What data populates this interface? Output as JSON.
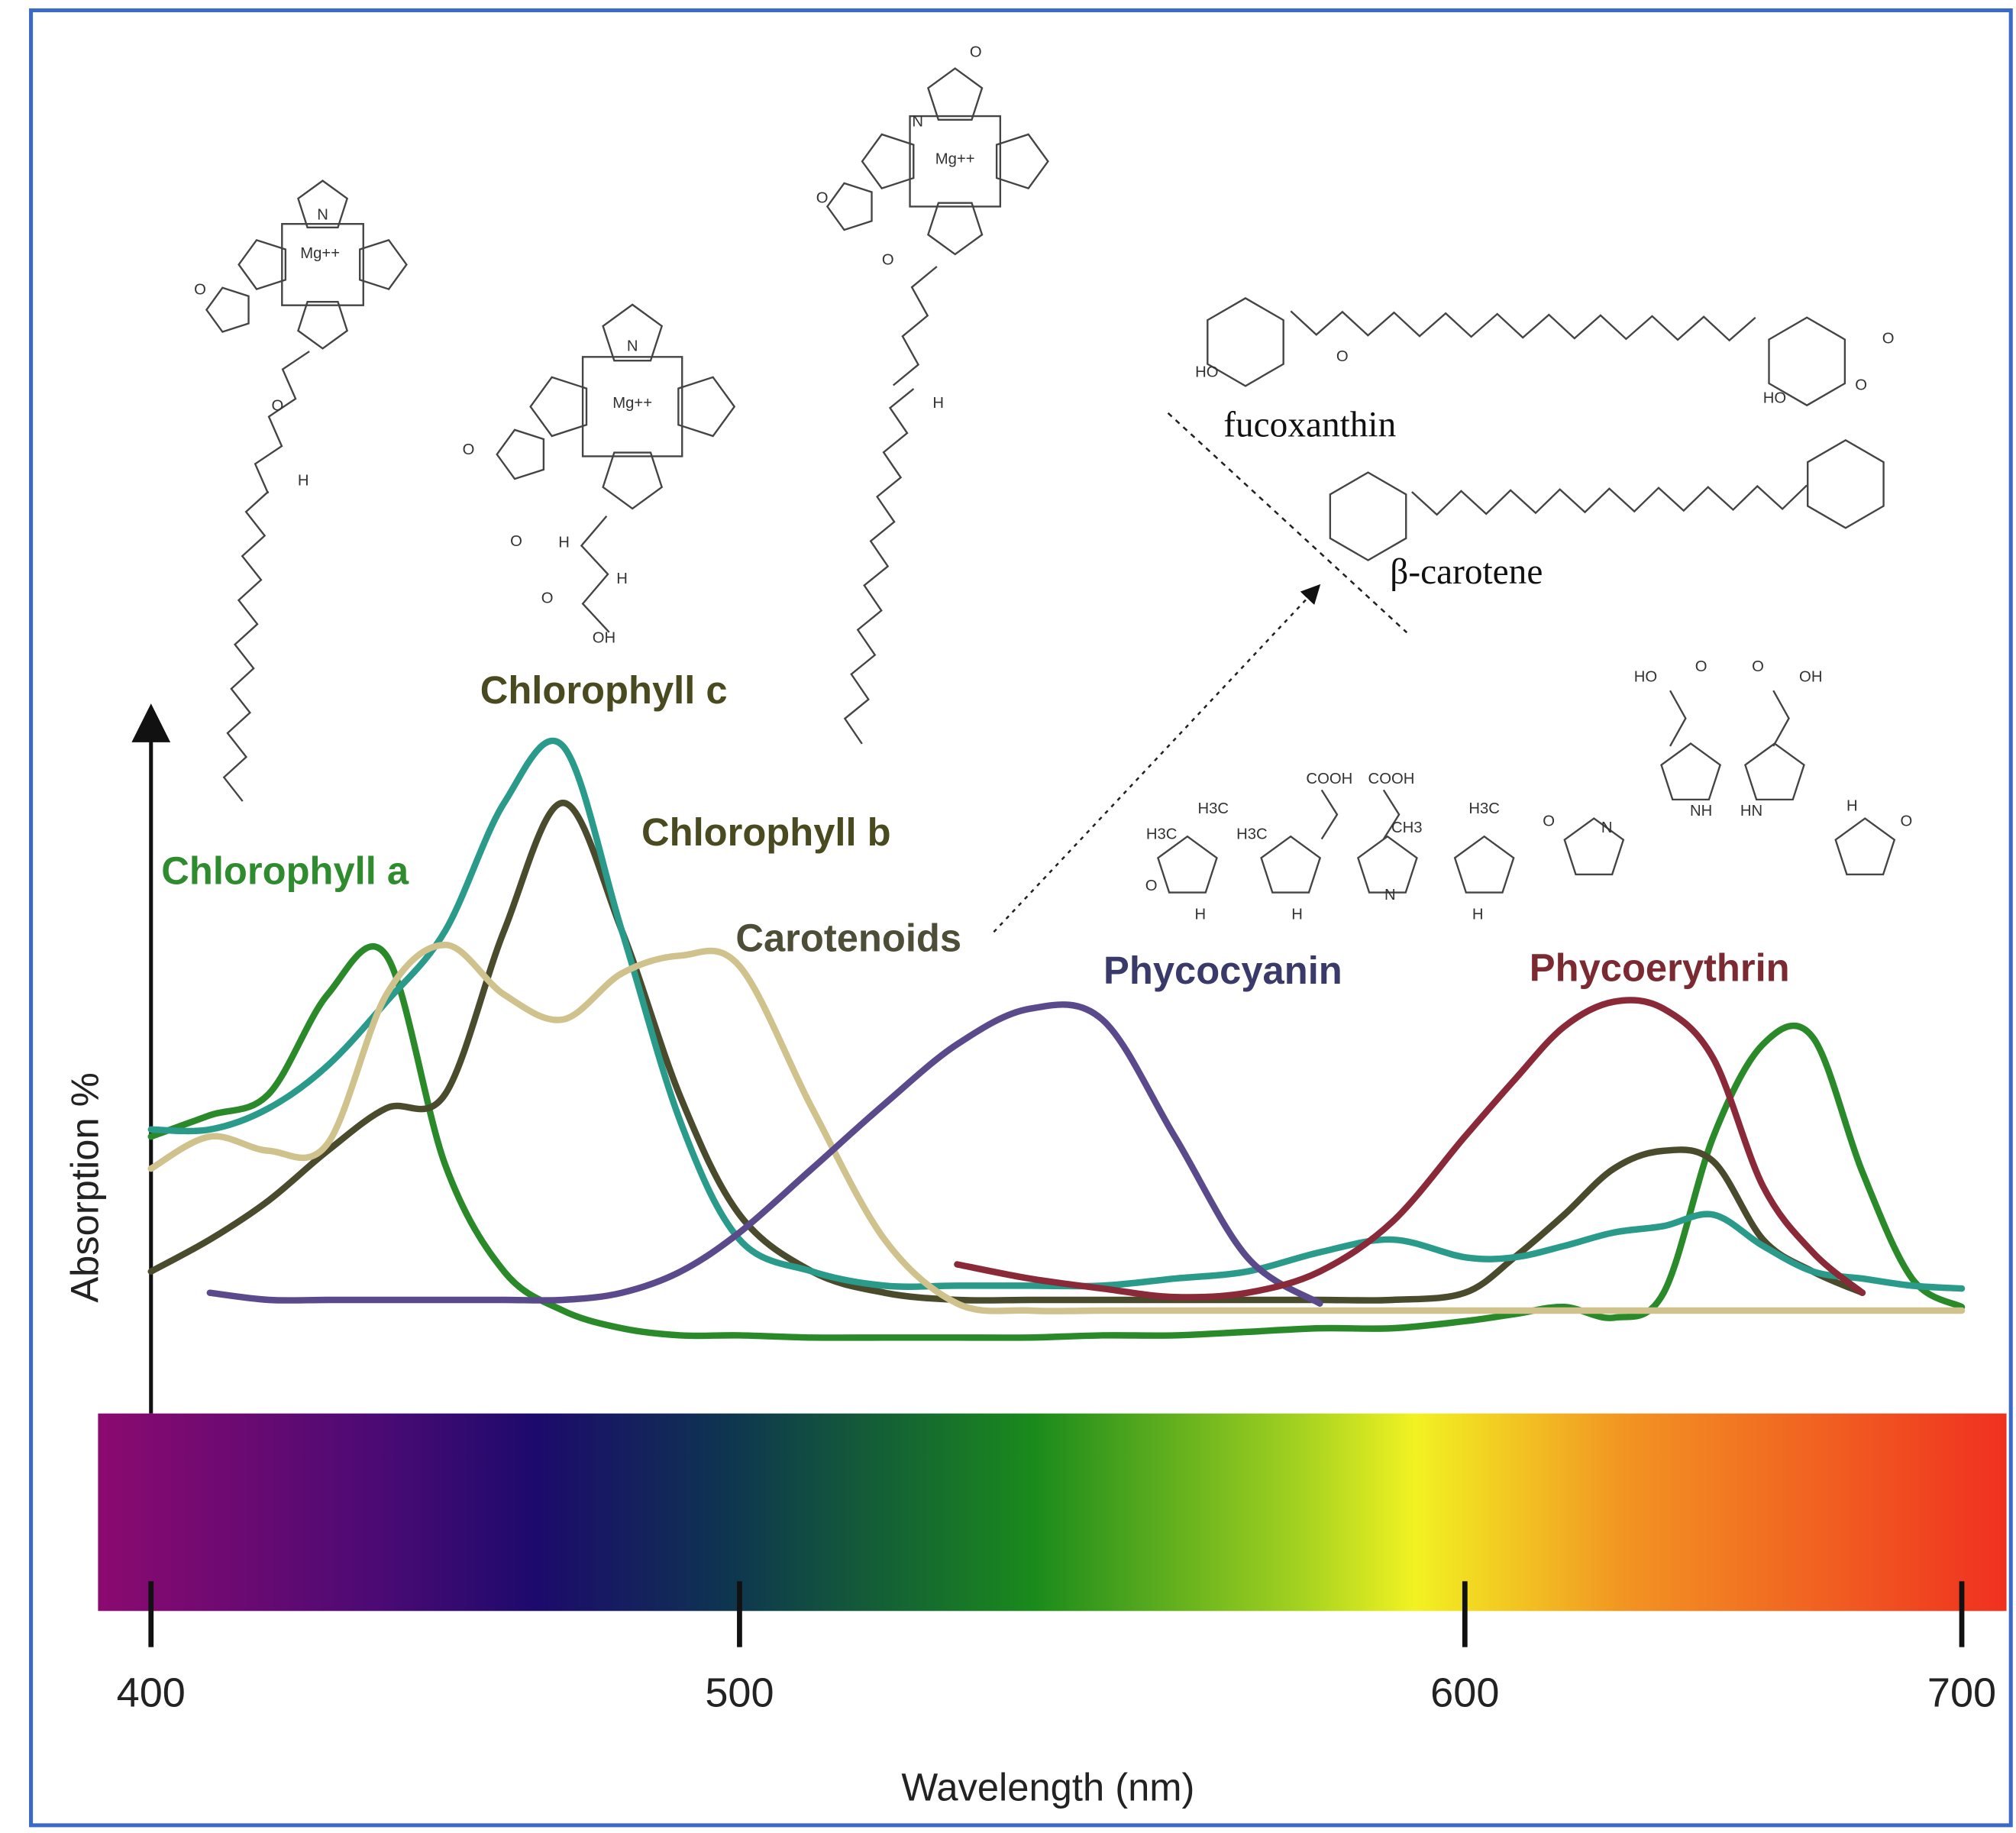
{
  "chart_data": {
    "type": "line",
    "x_label": "Wavelength (nm)",
    "y_label": "Absorption %",
    "x": [
      400,
      410,
      420,
      430,
      440,
      450,
      460,
      470,
      480,
      490,
      500,
      510,
      520,
      530,
      540,
      550,
      560,
      570,
      580,
      590,
      600,
      610,
      620,
      630,
      640,
      650,
      660,
      670,
      680,
      690,
      700
    ],
    "xlim": [
      391,
      709
    ],
    "xticks": [
      400,
      500,
      600,
      700
    ],
    "ylim": [
      0,
      100
    ],
    "grid": false,
    "series": [
      {
        "name": "Chlorophyll a",
        "color": "#2a8a2a",
        "label_color": "#2e8b2e",
        "values": [
          39,
          42,
          45,
          59,
          64.5,
          35,
          20,
          14.5,
          12,
          11,
          11,
          10.7,
          10.7,
          10.7,
          10.7,
          11,
          11,
          11.5,
          12,
          12,
          13,
          14,
          15,
          13.5,
          17,
          39,
          52,
          53,
          34,
          19,
          15
        ]
      },
      {
        "name": "Chlorophyll b",
        "color": "#4a4a2c",
        "label_color": "#4a4a20",
        "values": [
          20,
          24.5,
          30,
          37,
          43,
          45,
          68,
          86,
          68,
          44.5,
          28,
          20,
          17,
          16,
          16,
          16,
          16,
          16,
          16,
          16,
          17,
          22,
          28,
          34.5,
          37,
          35.5,
          24.5,
          20,
          17,
          null,
          null
        ]
      },
      {
        "name": "Chlorophyll c",
        "color": "#2a9a8a",
        "label_color": "#4a4a20",
        "values": [
          40,
          40,
          43,
          49,
          58,
          68,
          86,
          94,
          68,
          41,
          24.5,
          20,
          18,
          18,
          18,
          18,
          19,
          20,
          22.7,
          24.5,
          22,
          22,
          23.6,
          25.5,
          26.4,
          28,
          23.6,
          20,
          19,
          18,
          17.6
        ]
      },
      {
        "name": "Carotenoids",
        "color": "#cfc28c",
        "label_color": "#4d4d38",
        "values": [
          34.5,
          39,
          37,
          38,
          59,
          66,
          59,
          55.5,
          62,
          64.5,
          63,
          43,
          24.5,
          15.5,
          14.5,
          14.5,
          14.5,
          14.5,
          14.5,
          14.5,
          14.5,
          14.5,
          14.5,
          14.5,
          14.5,
          14.5,
          14.5,
          14.5,
          14.5,
          14.5,
          14.5
        ]
      },
      {
        "name": "Phycocyanin",
        "color": "#5a4a8c",
        "label_color": "#3a3a6a",
        "values": [
          null,
          17,
          16,
          16,
          16,
          16,
          16,
          16,
          17,
          20,
          25.5,
          34.5,
          43.6,
          52,
          57,
          55.5,
          39,
          22,
          15.5,
          null,
          null,
          null,
          null,
          null,
          null,
          null,
          null,
          null,
          null,
          null,
          null
        ]
      },
      {
        "name": "Phycoerythrin",
        "color": "#8a2a38",
        "label_color": "#7a2a30",
        "values": [
          null,
          null,
          null,
          null,
          null,
          null,
          null,
          null,
          null,
          null,
          null,
          null,
          null,
          21,
          19,
          17.6,
          16.4,
          17,
          20,
          27,
          39,
          47,
          54.5,
          58,
          57,
          50,
          32,
          22.7,
          17,
          null,
          null
        ]
      }
    ],
    "structure_names": [
      "fucoxanthin",
      "β-carotene"
    ],
    "structure_labels": [
      "N",
      "Mg++",
      "O",
      "O",
      "H",
      "N",
      "Mg++",
      "O",
      "O",
      "H",
      "H",
      "OH",
      "O",
      "N",
      "Mg++",
      "O",
      "O",
      "O",
      "H",
      "HO",
      "O",
      "HO",
      "O",
      "O",
      "COOH",
      "COOH",
      "H3C",
      "H3C",
      "H3C",
      "CH3",
      "H3C",
      "O",
      "H",
      "H",
      "N",
      "H",
      "HO",
      "O",
      "O",
      "OH",
      "NH",
      "HN",
      "O",
      "N",
      "H",
      "O"
    ]
  }
}
